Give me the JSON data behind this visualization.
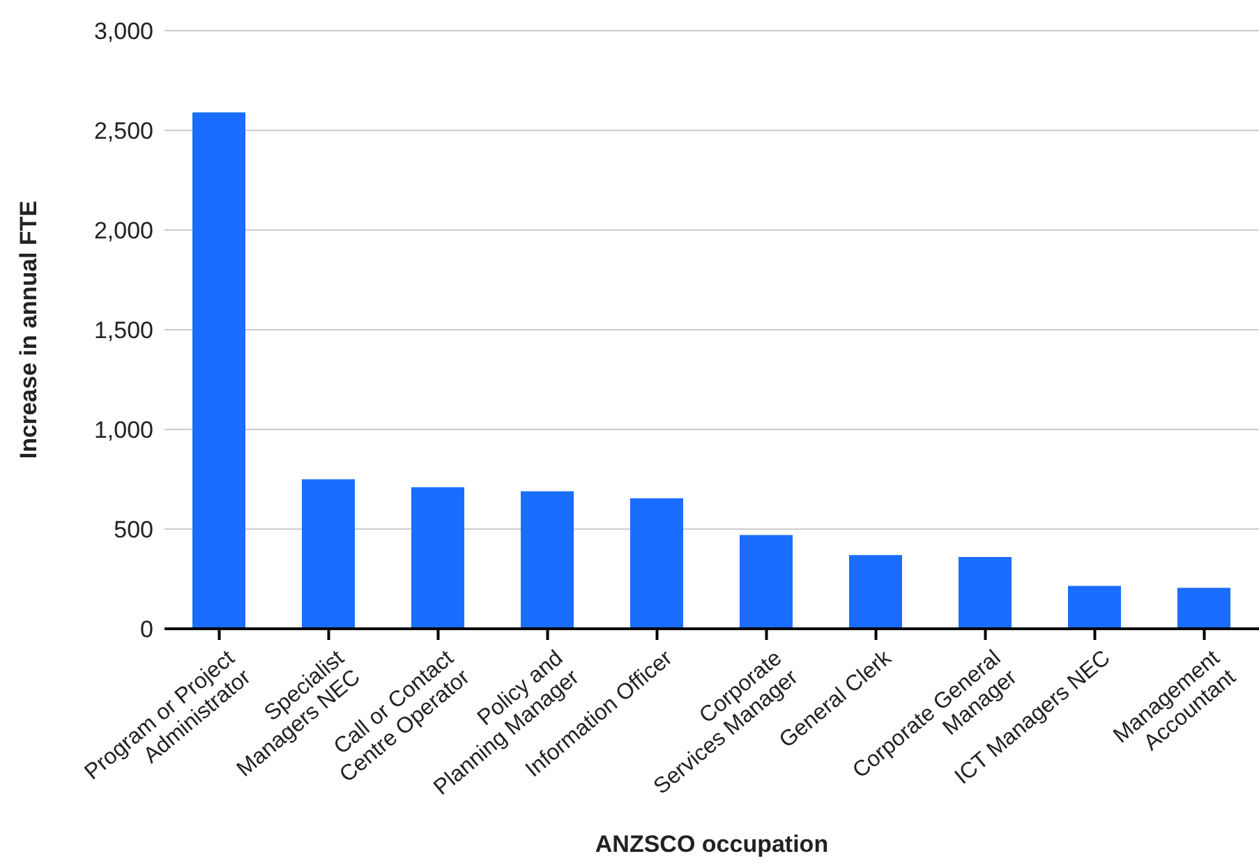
{
  "chart_data": {
    "type": "bar",
    "xlabel": "ANZSCO occupation",
    "ylabel": "Increase in annual FTE",
    "categories": [
      "Program or Project\nAdministrator",
      "Specialist\nManagers NEC",
      "Call or Contact\nCentre Operator",
      "Policy and\nPlanning Manager",
      "Information Officer",
      "Corporate\nServices Manager",
      "General Clerk",
      "Corporate General\nManager",
      "ICT Managers NEC",
      "Management\nAccountant"
    ],
    "values": [
      2590,
      750,
      710,
      690,
      655,
      470,
      370,
      360,
      215,
      205
    ],
    "color": "#1a6dff",
    "ylim": [
      0,
      3000
    ],
    "yticks": [
      0,
      500,
      {
        "value": 1000,
        "label": "1,000"
      },
      {
        "value": 1500,
        "label": "1,500"
      },
      {
        "value": 2000,
        "label": "2,000"
      },
      {
        "value": 2500,
        "label": "2,500"
      },
      {
        "value": 3000,
        "label": "3,000"
      }
    ],
    "grid": "y"
  }
}
